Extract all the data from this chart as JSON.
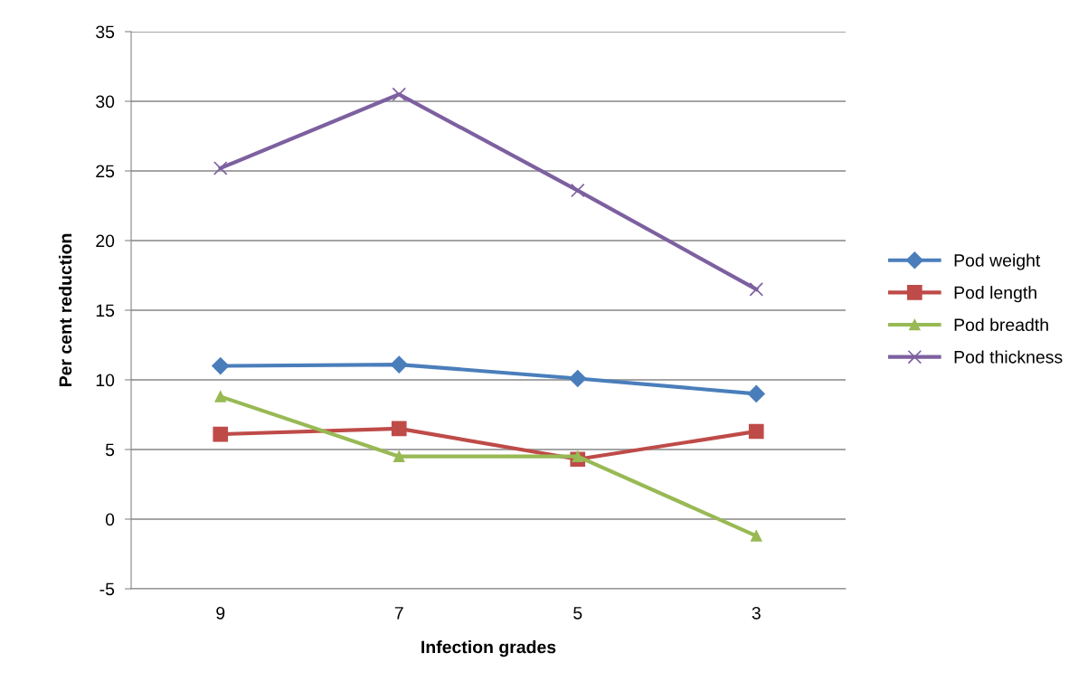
{
  "chart_data": {
    "type": "line",
    "xlabel": "Infection grades",
    "ylabel": "Per cent reduction",
    "categories": [
      "9",
      "7",
      "5",
      "3"
    ],
    "series": [
      {
        "name": "Pod weight",
        "color": "#4a7ebb",
        "marker": "diamond",
        "values": [
          11.0,
          11.1,
          10.1,
          9.0
        ]
      },
      {
        "name": "Pod length",
        "color": "#be4b48",
        "marker": "square",
        "values": [
          6.1,
          6.5,
          4.3,
          6.3
        ]
      },
      {
        "name": "Pod breadth",
        "color": "#98b954",
        "marker": "triangle",
        "values": [
          8.8,
          4.5,
          4.5,
          -1.2
        ]
      },
      {
        "name": "Pod thickness",
        "color": "#7d60a0",
        "marker": "cross",
        "values": [
          25.2,
          30.5,
          23.6,
          16.5
        ]
      }
    ],
    "ylim": [
      -5,
      35
    ],
    "yticks": [
      -5,
      0,
      5,
      10,
      15,
      20,
      25,
      30,
      35
    ],
    "grid": "y",
    "legend": "right"
  }
}
